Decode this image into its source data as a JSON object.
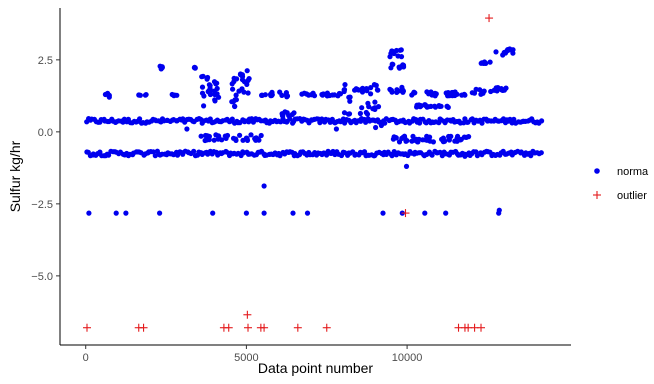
{
  "chart_data": {
    "type": "scatter",
    "title": "",
    "xlabel": "Data point number",
    "ylabel": "Sulfur kg/hr",
    "xlim": [
      -800,
      15100
    ],
    "ylim": [
      -7.4,
      4.3
    ],
    "x_ticks": [
      {
        "value": 0,
        "label": "0"
      },
      {
        "value": 5000,
        "label": "5000"
      },
      {
        "value": 10000,
        "label": "10000"
      }
    ],
    "y_ticks": [
      {
        "value": 2.5,
        "label": "2.5"
      },
      {
        "value": 0,
        "label": "0.0"
      },
      {
        "value": -2.5,
        "label": "−2.5"
      },
      {
        "value": -5,
        "label": "−5.0"
      }
    ],
    "grid": false,
    "legend_position": "right",
    "series": [
      {
        "name": "normal",
        "legend_label": "norma",
        "color": "#0000ee",
        "marker": "circle",
        "bands": [
          {
            "x_start": 0,
            "x_end": 14200,
            "y_center": 0.38,
            "spread": 0.08,
            "n": 240
          },
          {
            "x_start": 0,
            "x_end": 14200,
            "y_center": -0.75,
            "spread": 0.08,
            "n": 240
          }
        ],
        "clusters": [
          {
            "x": [
              600,
              800
            ],
            "y": [
              1.2,
              1.35
            ]
          },
          {
            "x": [
              1650,
              1900
            ],
            "y": [
              1.25,
              1.3
            ]
          },
          {
            "x": [
              2250,
              2450
            ],
            "y": [
              2.15,
              2.3
            ]
          },
          {
            "x": [
              2650,
              2850
            ],
            "y": [
              1.25,
              1.3
            ]
          },
          {
            "x": [
              3350,
              3450
            ],
            "y": [
              2.2,
              2.25
            ]
          },
          {
            "x": [
              3600,
              3900
            ],
            "y": [
              0.9,
              2.1
            ]
          },
          {
            "x": [
              4000,
              4200
            ],
            "y": [
              1.0,
              1.8
            ]
          },
          {
            "x": [
              4500,
              4700
            ],
            "y": [
              0.8,
              1.9
            ]
          },
          {
            "x": [
              4700,
              5100
            ],
            "y": [
              1.3,
              2.25
            ]
          },
          {
            "x": [
              5400,
              5600
            ],
            "y": [
              1.25,
              1.3
            ]
          },
          {
            "x": [
              5700,
              6300
            ],
            "y": [
              1.2,
              1.4
            ]
          },
          {
            "x": [
              6100,
              6500
            ],
            "y": [
              0.55,
              0.7
            ]
          },
          {
            "x": [
              6700,
              8000
            ],
            "y": [
              1.25,
              1.35
            ]
          },
          {
            "x": [
              8000,
              9200
            ],
            "y": [
              0.6,
              1.7
            ]
          },
          {
            "x": [
              8400,
              8900
            ],
            "y": [
              1.45,
              1.55
            ]
          },
          {
            "x": [
              9400,
              9900
            ],
            "y": [
              2.6,
              2.85
            ]
          },
          {
            "x": [
              9400,
              9900
            ],
            "y": [
              2.2,
              2.35
            ]
          },
          {
            "x": [
              9400,
              10100
            ],
            "y": [
              1.35,
              1.55
            ]
          },
          {
            "x": [
              10000,
              11800
            ],
            "y": [
              1.25,
              1.4
            ]
          },
          {
            "x": [
              12000,
              12400
            ],
            "y": [
              1.3,
              1.5
            ]
          },
          {
            "x": [
              12300,
              12600
            ],
            "y": [
              2.35,
              2.45
            ]
          },
          {
            "x": [
              12700,
              13300
            ],
            "y": [
              2.65,
              2.9
            ]
          },
          {
            "x": [
              12600,
              13200
            ],
            "y": [
              1.4,
              1.55
            ]
          },
          {
            "x": [
              10100,
              11300
            ],
            "y": [
              0.85,
              0.95
            ]
          },
          {
            "x": [
              3500,
              5500
            ],
            "y": [
              -0.3,
              -0.1
            ]
          },
          {
            "x": [
              9500,
              12000
            ],
            "y": [
              -0.35,
              -0.15
            ]
          }
        ],
        "points": [
          {
            "x": 100,
            "y": -2.82
          },
          {
            "x": 950,
            "y": -2.82
          },
          {
            "x": 1250,
            "y": -2.82
          },
          {
            "x": 2300,
            "y": -2.82
          },
          {
            "x": 3950,
            "y": -2.82
          },
          {
            "x": 5000,
            "y": -2.82
          },
          {
            "x": 5550,
            "y": -2.82
          },
          {
            "x": 6450,
            "y": -2.82
          },
          {
            "x": 6900,
            "y": -2.82
          },
          {
            "x": 9250,
            "y": -2.82
          },
          {
            "x": 9850,
            "y": -2.82
          },
          {
            "x": 10550,
            "y": -2.82
          },
          {
            "x": 11200,
            "y": -2.82
          },
          {
            "x": 12850,
            "y": -2.82
          },
          {
            "x": 12870,
            "y": -2.72
          },
          {
            "x": 5550,
            "y": -1.88
          },
          {
            "x": 9980,
            "y": -1.2
          },
          {
            "x": 11800,
            "y": -0.85
          },
          {
            "x": 3150,
            "y": 0.1
          },
          {
            "x": 7800,
            "y": 0.1
          },
          {
            "x": 9020,
            "y": 0.15
          },
          {
            "x": 9200,
            "y": 0.22
          }
        ]
      },
      {
        "name": "outlier",
        "legend_label": "outlier",
        "color": "#e41a1c",
        "marker": "plus",
        "points": [
          {
            "x": 40,
            "y": -6.8
          },
          {
            "x": 1650,
            "y": -6.8
          },
          {
            "x": 1800,
            "y": -6.8
          },
          {
            "x": 4300,
            "y": -6.8
          },
          {
            "x": 4450,
            "y": -6.8
          },
          {
            "x": 5050,
            "y": -6.8
          },
          {
            "x": 5450,
            "y": -6.8
          },
          {
            "x": 5550,
            "y": -6.8
          },
          {
            "x": 6600,
            "y": -6.8
          },
          {
            "x": 7500,
            "y": -6.8
          },
          {
            "x": 11600,
            "y": -6.8
          },
          {
            "x": 11800,
            "y": -6.8
          },
          {
            "x": 11900,
            "y": -6.8
          },
          {
            "x": 12100,
            "y": -6.8
          },
          {
            "x": 12300,
            "y": -6.8
          },
          {
            "x": 5030,
            "y": -6.35
          },
          {
            "x": 9950,
            "y": -2.82
          },
          {
            "x": 12550,
            "y": 3.95
          }
        ]
      }
    ]
  }
}
